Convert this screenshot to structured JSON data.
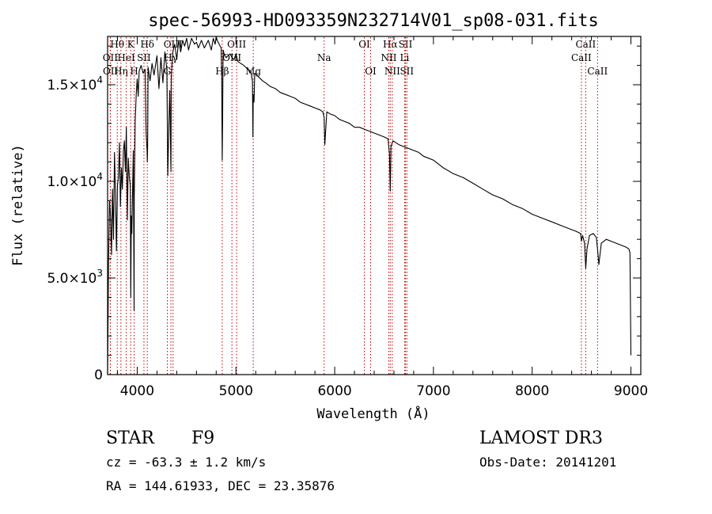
{
  "colors": {
    "background": "#ffffff",
    "ink": "#000000",
    "line_marker": "#c00000"
  },
  "chart_data": {
    "type": "line",
    "title": "spec-56993-HD093359N232714V01_sp08-031.fits",
    "xlabel": "Wavelength (Å)",
    "ylabel": "Flux (relative)",
    "xlim": [
      3700,
      9100
    ],
    "ylim": [
      0,
      17500
    ],
    "x_ticks": [
      4000,
      5000,
      6000,
      7000,
      8000,
      9000
    ],
    "x_tick_labels": [
      "4000",
      "5000",
      "6000",
      "7000",
      "8000",
      "9000"
    ],
    "y_ticks": [
      0,
      5000,
      10000,
      15000
    ],
    "y_tick_labels": [
      {
        "mant": "0",
        "exp": ""
      },
      {
        "mant": "5.0×10",
        "exp": "3"
      },
      {
        "mant": "1.0×10",
        "exp": "4"
      },
      {
        "mant": "1.5×10",
        "exp": "4"
      }
    ],
    "series": [
      {
        "name": "flux",
        "x": [
          3700,
          3710,
          3720,
          3730,
          3740,
          3750,
          3760,
          3770,
          3780,
          3790,
          3800,
          3810,
          3820,
          3830,
          3840,
          3850,
          3860,
          3870,
          3880,
          3890,
          3900,
          3910,
          3920,
          3930,
          3935,
          3940,
          3945,
          3950,
          3960,
          3965,
          3968,
          3970,
          3980,
          3990,
          4000,
          4010,
          4020,
          4040,
          4060,
          4080,
          4090,
          4100,
          4102,
          4105,
          4110,
          4130,
          4150,
          4170,
          4200,
          4220,
          4240,
          4260,
          4280,
          4300,
          4310,
          4320,
          4330,
          4340,
          4342,
          4345,
          4360,
          4380,
          4400,
          4420,
          4440,
          4460,
          4480,
          4500,
          4520,
          4550,
          4580,
          4600,
          4620,
          4650,
          4680,
          4700,
          4720,
          4750,
          4770,
          4790,
          4800,
          4810,
          4830,
          4850,
          4855,
          4861,
          4865,
          4870,
          4880,
          4900,
          4920,
          4940,
          4960,
          4980,
          5000,
          5020,
          5050,
          5080,
          5100,
          5120,
          5150,
          5167,
          5172,
          5175,
          5183,
          5190,
          5210,
          5250,
          5270,
          5300,
          5350,
          5400,
          5450,
          5500,
          5550,
          5600,
          5650,
          5700,
          5750,
          5800,
          5850,
          5880,
          5893,
          5900,
          5920,
          5950,
          6000,
          6050,
          6100,
          6150,
          6200,
          6250,
          6300,
          6350,
          6400,
          6450,
          6500,
          6540,
          6555,
          6563,
          6570,
          6590,
          6620,
          6650,
          6700,
          6750,
          6800,
          6850,
          6900,
          6950,
          7000,
          7100,
          7200,
          7300,
          7400,
          7500,
          7600,
          7700,
          7800,
          7900,
          8000,
          8100,
          8200,
          8300,
          8400,
          8450,
          8490,
          8498,
          8510,
          8530,
          8542,
          8555,
          8580,
          8620,
          8650,
          8662,
          8675,
          8700,
          8750,
          8800,
          8850,
          8900,
          8950,
          8980,
          8990,
          9000
        ],
        "y": [
          0,
          5800,
          9000,
          8200,
          6200,
          9600,
          7000,
          11500,
          9400,
          6400,
          9800,
          10200,
          12000,
          8700,
          10700,
          9600,
          11600,
          12100,
          10500,
          12800,
          8000,
          11200,
          10200,
          9800,
          4000,
          8200,
          7300,
          8700,
          11600,
          6800,
          3300,
          9200,
          13100,
          14500,
          15300,
          14400,
          15700,
          16000,
          15600,
          15800,
          12500,
          11600,
          11000,
          11800,
          15900,
          15200,
          16100,
          15500,
          16500,
          14800,
          16400,
          15100,
          16700,
          15800,
          10300,
          12900,
          14700,
          11000,
          10500,
          15400,
          16700,
          17100,
          16300,
          17300,
          16700,
          17300,
          17000,
          17400,
          16800,
          17400,
          17100,
          17200,
          16900,
          17300,
          16900,
          17100,
          17300,
          16800,
          17400,
          17100,
          17500,
          17300,
          17100,
          16900,
          15500,
          11100,
          13200,
          16800,
          16600,
          16400,
          16500,
          16600,
          16400,
          16300,
          16600,
          16200,
          16100,
          16000,
          15900,
          15800,
          15700,
          15200,
          12300,
          14500,
          14100,
          15600,
          15500,
          15300,
          15200,
          15100,
          14900,
          14800,
          14600,
          14500,
          14400,
          14300,
          14100,
          14000,
          13900,
          13800,
          13700,
          13600,
          13300,
          11900,
          13600,
          13500,
          13400,
          13200,
          13100,
          13000,
          12800,
          12800,
          12700,
          12600,
          12500,
          12400,
          12300,
          12200,
          11400,
          9500,
          11800,
          12100,
          12000,
          11900,
          11800,
          11700,
          11600,
          11500,
          11300,
          11200,
          11100,
          10700,
          10400,
          10200,
          9900,
          9600,
          9300,
          9100,
          8800,
          8600,
          8300,
          8100,
          7900,
          7700,
          7500,
          7400,
          7300,
          6900,
          7200,
          6800,
          5500,
          6500,
          7200,
          7300,
          7100,
          6500,
          5700,
          6800,
          7000,
          6900,
          6800,
          6700,
          6600,
          6500,
          6300,
          1000
        ]
      }
    ],
    "line_markers": [
      {
        "label": "Hθ",
        "x": 3798,
        "row": 0
      },
      {
        "label": "OII",
        "x": 3727,
        "row": 1
      },
      {
        "label": "OII",
        "x": 3729,
        "row": 2
      },
      {
        "label": "Hη",
        "x": 3835,
        "row": 2
      },
      {
        "label": "HeI",
        "x": 3889,
        "row": 1
      },
      {
        "label": "K",
        "x": 3934,
        "row": 0
      },
      {
        "label": "SII",
        "x": 4068,
        "row": 1
      },
      {
        "label": "H",
        "x": 3969,
        "row": 2
      },
      {
        "label": "Hδ",
        "x": 4102,
        "row": 0
      },
      {
        "label": "OIII",
        "x": 4363,
        "row": 0
      },
      {
        "label": "Hγ",
        "x": 4341,
        "row": 1
      },
      {
        "label": "G",
        "x": 4305,
        "row": 2
      },
      {
        "label": "OIII",
        "x": 5007,
        "row": 0
      },
      {
        "label": "OIII",
        "x": 4959,
        "row": 1
      },
      {
        "label": "Hβ",
        "x": 4861,
        "row": 2
      },
      {
        "label": "Mg",
        "x": 5175,
        "row": 2
      },
      {
        "label": "Na",
        "x": 5893,
        "row": 1
      },
      {
        "label": "OI",
        "x": 6300,
        "row": 0
      },
      {
        "label": "OI",
        "x": 6364,
        "row": 2
      },
      {
        "label": "Hα",
        "x": 6563,
        "row": 0
      },
      {
        "label": "NII",
        "x": 6548,
        "row": 1
      },
      {
        "label": "NII",
        "x": 6583,
        "row": 2
      },
      {
        "label": "SII",
        "x": 6717,
        "row": 0
      },
      {
        "label": "Li",
        "x": 6708,
        "row": 1
      },
      {
        "label": "SII",
        "x": 6731,
        "row": 2
      },
      {
        "label": "CaII",
        "x": 8542,
        "row": 0
      },
      {
        "label": "CaII",
        "x": 8498,
        "row": 1
      },
      {
        "label": "CaII",
        "x": 8662,
        "row": 2
      }
    ]
  },
  "info": {
    "object_class": "STAR",
    "subclass": "F9",
    "survey": "LAMOST DR3",
    "cz": "cz = -63.3 ± 1.2 km/s",
    "obs_date": "Obs-Date: 20141201",
    "coords": "RA = 144.61933, DEC =  23.35876"
  }
}
